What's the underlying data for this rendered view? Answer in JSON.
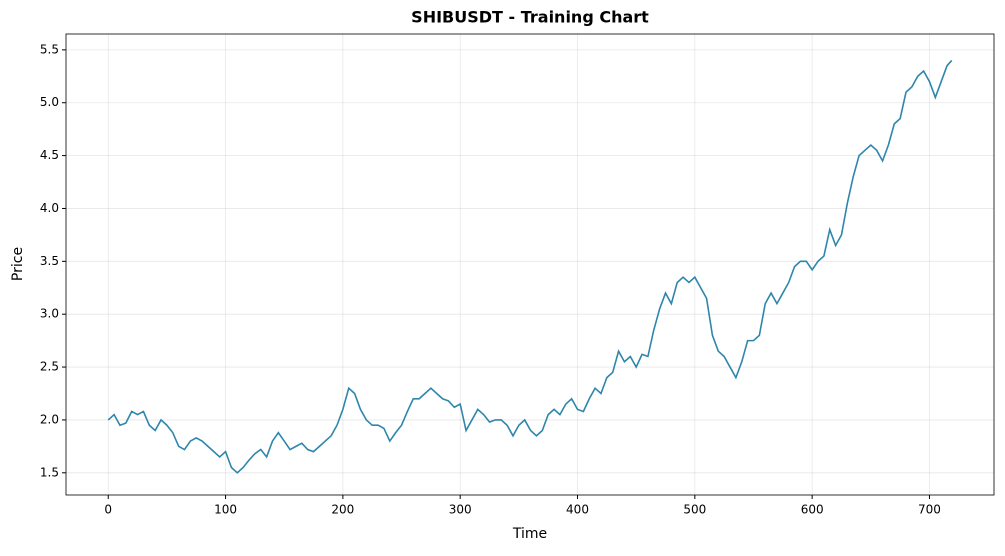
{
  "chart_data": {
    "type": "line",
    "title": "SHIBUSDT - Training Chart",
    "x_label": "Time",
    "y_label": "Price",
    "x": [
      0,
      5,
      10,
      15,
      20,
      25,
      30,
      35,
      40,
      45,
      50,
      55,
      60,
      65,
      70,
      75,
      80,
      85,
      90,
      95,
      100,
      105,
      110,
      115,
      120,
      125,
      130,
      135,
      140,
      145,
      150,
      155,
      160,
      165,
      170,
      175,
      180,
      185,
      190,
      195,
      200,
      205,
      210,
      215,
      220,
      225,
      230,
      235,
      240,
      245,
      250,
      255,
      260,
      265,
      270,
      275,
      280,
      285,
      290,
      295,
      300,
      305,
      310,
      315,
      320,
      325,
      330,
      335,
      340,
      345,
      350,
      355,
      360,
      365,
      370,
      375,
      380,
      385,
      390,
      395,
      400,
      405,
      410,
      415,
      420,
      425,
      430,
      435,
      440,
      445,
      450,
      455,
      460,
      465,
      470,
      475,
      480,
      485,
      490,
      495,
      500,
      505,
      510,
      515,
      520,
      525,
      530,
      535,
      540,
      545,
      550,
      555,
      560,
      565,
      570,
      575,
      580,
      585,
      590,
      595,
      600,
      605,
      610,
      615,
      620,
      625,
      630,
      635,
      640,
      645,
      650,
      655,
      660,
      665,
      670,
      675,
      680,
      685,
      690,
      695,
      700,
      705,
      710,
      715,
      719
    ],
    "values": [
      2.0,
      2.05,
      1.95,
      1.97,
      2.08,
      2.05,
      2.08,
      1.95,
      1.9,
      2.0,
      1.95,
      1.88,
      1.75,
      1.72,
      1.8,
      1.83,
      1.8,
      1.75,
      1.7,
      1.65,
      1.7,
      1.55,
      1.5,
      1.55,
      1.62,
      1.68,
      1.72,
      1.65,
      1.8,
      1.88,
      1.8,
      1.72,
      1.75,
      1.78,
      1.72,
      1.7,
      1.75,
      1.8,
      1.85,
      1.95,
      2.1,
      2.3,
      2.25,
      2.1,
      2.0,
      1.95,
      1.95,
      1.92,
      1.8,
      1.88,
      1.95,
      2.08,
      2.2,
      2.2,
      2.25,
      2.3,
      2.25,
      2.2,
      2.18,
      2.12,
      2.15,
      1.9,
      2.0,
      2.1,
      2.05,
      1.98,
      2.0,
      2.0,
      1.95,
      1.85,
      1.95,
      2.0,
      1.9,
      1.85,
      1.9,
      2.05,
      2.1,
      2.05,
      2.15,
      2.2,
      2.1,
      2.08,
      2.2,
      2.3,
      2.25,
      2.4,
      2.45,
      2.65,
      2.55,
      2.6,
      2.5,
      2.62,
      2.6,
      2.85,
      3.05,
      3.2,
      3.1,
      3.3,
      3.35,
      3.3,
      3.35,
      3.25,
      3.15,
      2.8,
      2.65,
      2.6,
      2.5,
      2.4,
      2.55,
      2.75,
      2.75,
      2.8,
      3.1,
      3.2,
      3.1,
      3.2,
      3.3,
      3.45,
      3.5,
      3.5,
      3.42,
      3.5,
      3.55,
      3.8,
      3.65,
      3.75,
      4.05,
      4.3,
      4.5,
      4.55,
      4.6,
      4.55,
      4.45,
      4.6,
      4.8,
      4.85,
      5.1,
      5.15,
      5.25,
      5.3,
      5.2,
      5.05,
      5.2,
      5.35,
      5.4
    ],
    "color": "#2e86ab",
    "xlim": [
      -36,
      755
    ],
    "ylim": [
      1.29,
      5.65
    ],
    "xticks": [
      0,
      100,
      200,
      300,
      400,
      500,
      600,
      700
    ],
    "yticks": [
      1.5,
      {
        "value": 2,
        "label": "2.0"
      },
      2.5,
      {
        "value": 3,
        "label": "3.0"
      },
      3.5,
      {
        "value": 4,
        "label": "4.0"
      },
      4.5,
      {
        "value": 5,
        "label": "5.0"
      },
      5.5
    ],
    "grid": true
  }
}
